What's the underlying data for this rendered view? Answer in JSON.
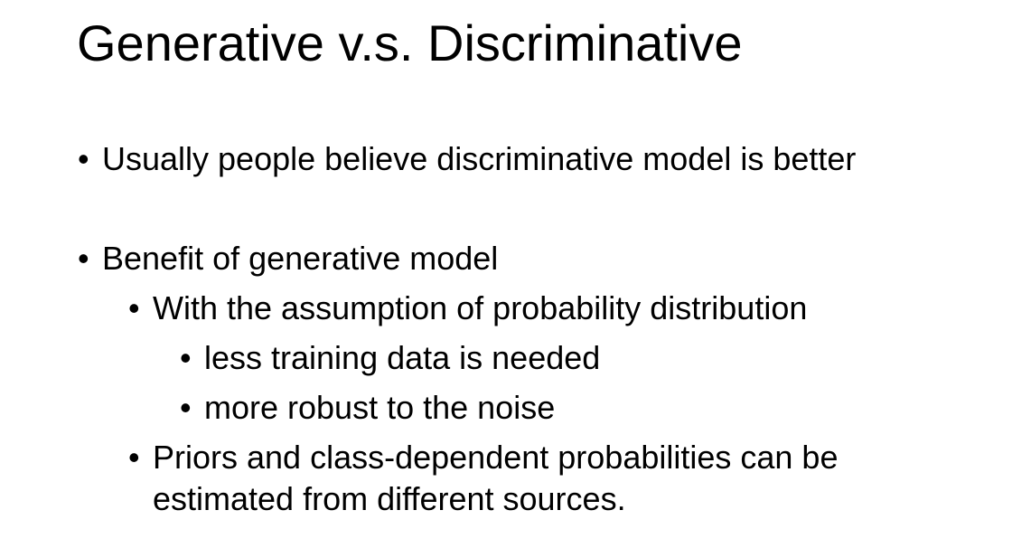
{
  "slide": {
    "title": "Generative v.s. Discriminative",
    "bullet_char": "•",
    "bullets": [
      {
        "level": 1,
        "text": "Usually people believe discriminative model is better"
      },
      {
        "level": 1,
        "text": "Benefit of generative model"
      },
      {
        "level": 2,
        "text": "With the assumption of probability distribution"
      },
      {
        "level": 3,
        "text": "less training data is needed"
      },
      {
        "level": 3,
        "text": "more robust to the noise"
      },
      {
        "level": 2,
        "text": "Priors and class-dependent probabilities can be estimated from different sources."
      }
    ]
  }
}
